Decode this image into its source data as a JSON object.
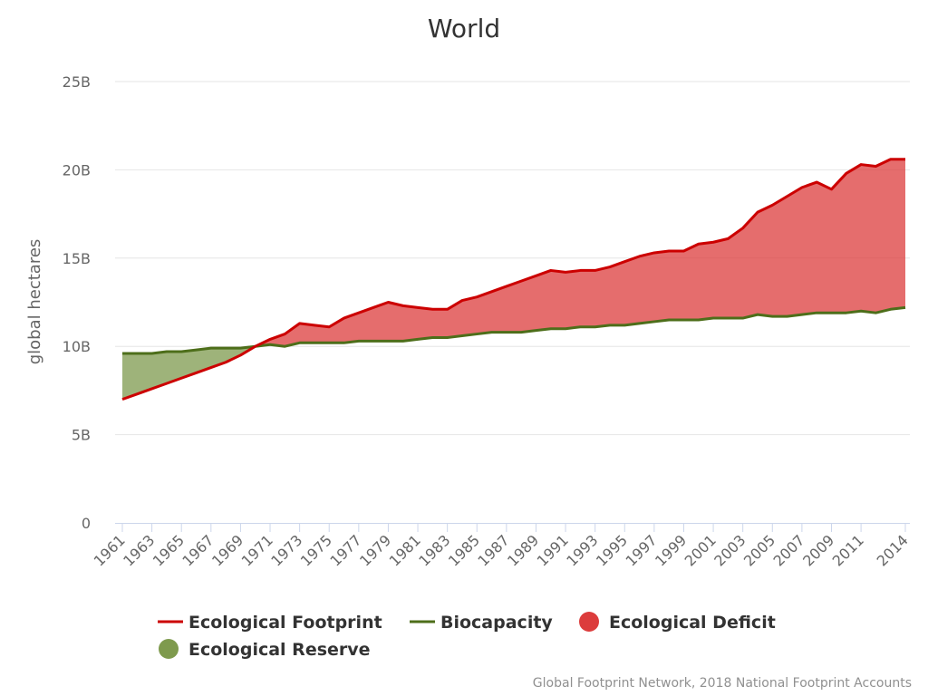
{
  "chart_data": {
    "type": "area",
    "title": "World",
    "xlabel": "",
    "ylabel": "global hectares",
    "ylim": [
      0,
      25
    ],
    "y_unit": "B",
    "yticks": [
      0,
      5,
      10,
      15,
      20,
      25
    ],
    "ytick_labels": [
      "0",
      "5B",
      "10B",
      "15B",
      "20B",
      "25B"
    ],
    "grid": "horizontal",
    "legend_position": "bottom",
    "x": [
      1961,
      1962,
      1963,
      1964,
      1965,
      1966,
      1967,
      1968,
      1969,
      1970,
      1971,
      1972,
      1973,
      1974,
      1975,
      1976,
      1977,
      1978,
      1979,
      1980,
      1981,
      1982,
      1983,
      1984,
      1985,
      1986,
      1987,
      1988,
      1989,
      1990,
      1991,
      1992,
      1993,
      1994,
      1995,
      1996,
      1997,
      1998,
      1999,
      2000,
      2001,
      2002,
      2003,
      2004,
      2005,
      2006,
      2007,
      2008,
      2009,
      2010,
      2011,
      2012,
      2013,
      2014
    ],
    "xtick_labels": [
      "1961",
      "1963",
      "1965",
      "1967",
      "1969",
      "1971",
      "1973",
      "1975",
      "1977",
      "1979",
      "1981",
      "1983",
      "1985",
      "1987",
      "1989",
      "1991",
      "1993",
      "1995",
      "1997",
      "1999",
      "2001",
      "2003",
      "2005",
      "2007",
      "2009",
      "2011",
      "2014"
    ],
    "series": [
      {
        "name": "Ecological Footprint",
        "color": "#cc0000",
        "values": [
          7.0,
          7.3,
          7.6,
          7.9,
          8.2,
          8.5,
          8.8,
          9.1,
          9.5,
          10.0,
          10.4,
          10.7,
          11.3,
          11.2,
          11.1,
          11.6,
          11.9,
          12.2,
          12.5,
          12.3,
          12.2,
          12.1,
          12.1,
          12.6,
          12.8,
          13.1,
          13.4,
          13.7,
          14.0,
          14.3,
          14.2,
          14.3,
          14.3,
          14.5,
          14.8,
          15.1,
          15.3,
          15.4,
          15.4,
          15.8,
          15.9,
          16.1,
          16.7,
          17.6,
          18.0,
          18.5,
          19.0,
          19.3,
          18.9,
          19.8,
          20.3,
          20.2,
          20.6,
          20.6
        ]
      },
      {
        "name": "Biocapacity",
        "color": "#4d6e1a",
        "values": [
          9.6,
          9.6,
          9.6,
          9.7,
          9.7,
          9.8,
          9.9,
          9.9,
          9.9,
          10.0,
          10.1,
          10.0,
          10.2,
          10.2,
          10.2,
          10.2,
          10.3,
          10.3,
          10.3,
          10.3,
          10.4,
          10.5,
          10.5,
          10.6,
          10.7,
          10.8,
          10.8,
          10.8,
          10.9,
          11.0,
          11.0,
          11.1,
          11.1,
          11.2,
          11.2,
          11.3,
          11.4,
          11.5,
          11.5,
          11.5,
          11.6,
          11.6,
          11.6,
          11.8,
          11.7,
          11.7,
          11.8,
          11.9,
          11.9,
          11.9,
          12.0,
          11.9,
          12.1,
          12.2
        ]
      }
    ],
    "areas": [
      {
        "name": "Ecological Deficit",
        "color": "#dc3c3c"
      },
      {
        "name": "Ecological Reserve",
        "color": "#7e9a4d"
      }
    ]
  },
  "credits": "Global Footprint Network, 2018 National Footprint Accounts"
}
